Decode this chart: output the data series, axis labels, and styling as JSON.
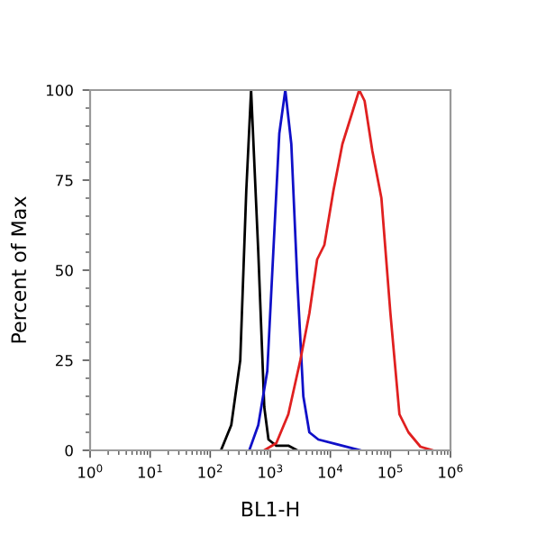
{
  "chart_data": {
    "type": "line",
    "ylabel": "Percent of Max",
    "xlabel": "BL1-H",
    "log": "x",
    "xlim": [
      1,
      1000000
    ],
    "xticks": [
      {
        "value": 1,
        "label": "10$^{0}$"
      },
      {
        "value": 10,
        "label": "10$^{1}$"
      },
      {
        "value": 100,
        "label": "10$^{2}$"
      },
      {
        "value": 1000,
        "label": "10$^{3}$"
      },
      {
        "value": 10000,
        "label": "10$^{4}$"
      },
      {
        "value": 100000,
        "label": "10$^{5}$"
      },
      {
        "value": 1000000,
        "label": "10$^{6}$"
      }
    ],
    "ylim": [
      0,
      100
    ],
    "yticks": [
      0,
      25,
      50,
      75,
      100
    ],
    "grid": false,
    "series": [
      {
        "color": "#000000",
        "x": [
          151,
          224,
          316,
          398,
          479,
          631,
          794,
          933,
          1259,
          1995,
          2818
        ],
        "values": [
          0,
          7,
          25,
          72,
          100,
          55,
          12,
          3,
          1.3,
          1.3,
          0
        ]
      },
      {
        "color": "#1010c8",
        "x": [
          447,
          631,
          891,
          1122,
          1413,
          1778,
          2239,
          2818,
          3548,
          4467,
          6310,
          12589,
          31623
        ],
        "values": [
          0,
          7,
          22,
          55,
          88,
          100,
          85,
          47,
          15,
          5,
          3,
          1.7,
          0
        ]
      },
      {
        "color": "#e02020",
        "x": [
          794,
          1259,
          1995,
          3162,
          4467,
          6026,
          7943,
          11220,
          15849,
          22387,
          30200,
          37154,
          50119,
          70795,
          100000,
          141254,
          199526,
          316228,
          501187
        ],
        "values": [
          0,
          2,
          10,
          25,
          38,
          53,
          57,
          72,
          85,
          93,
          100,
          97,
          83,
          70,
          38,
          10,
          5,
          1,
          0
        ]
      }
    ]
  }
}
